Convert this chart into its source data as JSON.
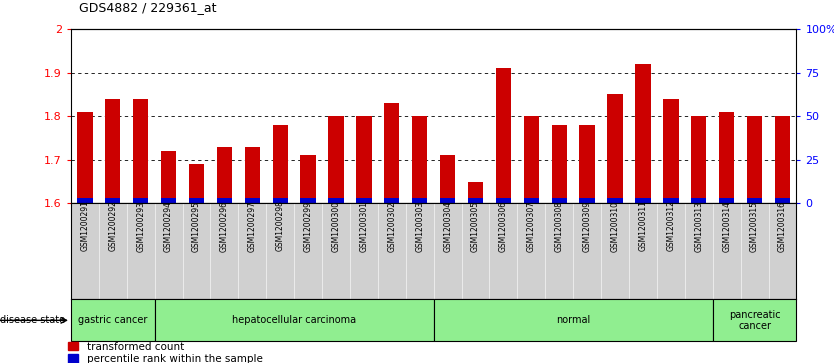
{
  "title": "GDS4882 / 229361_at",
  "samples": [
    "GSM1200291",
    "GSM1200292",
    "GSM1200293",
    "GSM1200294",
    "GSM1200295",
    "GSM1200296",
    "GSM1200297",
    "GSM1200298",
    "GSM1200299",
    "GSM1200300",
    "GSM1200301",
    "GSM1200302",
    "GSM1200303",
    "GSM1200304",
    "GSM1200305",
    "GSM1200306",
    "GSM1200307",
    "GSM1200308",
    "GSM1200309",
    "GSM1200310",
    "GSM1200311",
    "GSM1200312",
    "GSM1200313",
    "GSM1200314",
    "GSM1200315",
    "GSM1200316"
  ],
  "transformed_count": [
    1.81,
    1.84,
    1.84,
    1.72,
    1.69,
    1.73,
    1.73,
    1.78,
    1.71,
    1.8,
    1.8,
    1.83,
    1.8,
    1.71,
    1.65,
    1.91,
    1.8,
    1.78,
    1.78,
    1.85,
    1.92,
    1.84,
    1.8,
    1.81,
    1.8,
    1.8
  ],
  "percentile_rank": [
    4,
    5,
    5,
    4,
    4,
    4,
    4,
    4,
    4,
    5,
    5,
    5,
    4,
    4,
    4,
    4,
    5,
    4,
    4,
    4,
    4,
    5,
    4,
    4,
    4,
    4
  ],
  "ylim_left": [
    1.6,
    2.0
  ],
  "ylim_right": [
    0,
    100
  ],
  "yticks_left": [
    1.6,
    1.7,
    1.8,
    1.9,
    2.0
  ],
  "ytick_labels_left": [
    "1.6",
    "1.7",
    "1.8",
    "1.9",
    "2"
  ],
  "yticks_right": [
    0,
    25,
    50,
    75,
    100
  ],
  "ytick_labels_right": [
    "0",
    "25",
    "50",
    "75",
    "100%"
  ],
  "disease_groups": [
    {
      "label": "gastric cancer",
      "start": 0,
      "end": 2
    },
    {
      "label": "hepatocellular carcinoma",
      "start": 3,
      "end": 12
    },
    {
      "label": "normal",
      "start": 13,
      "end": 22
    },
    {
      "label": "pancreatic\ncancer",
      "start": 23,
      "end": 25
    }
  ],
  "bar_color_red": "#CC0000",
  "bar_color_blue": "#0000CC",
  "base_value": 1.6,
  "bar_width": 0.55,
  "grid_lines": [
    1.7,
    1.8,
    1.9
  ],
  "blue_bar_height": 0.012,
  "disease_state_label": "disease state",
  "legend_labels": [
    "transformed count",
    "percentile rank within the sample"
  ]
}
